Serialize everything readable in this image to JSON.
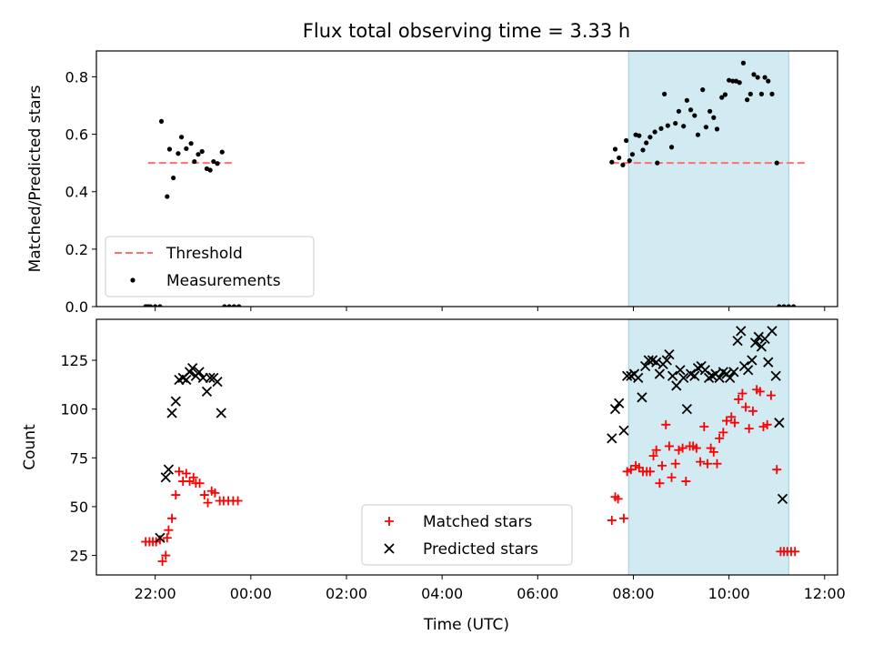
{
  "figure": {
    "title": "Flux total observing time = 3.33 h",
    "xlabel": "Time (UTC)",
    "x_tick_labels": [
      "22:00",
      "00:00",
      "02:00",
      "04:00",
      "06:00",
      "08:00",
      "10:00",
      "12:00"
    ]
  },
  "chart_data": [
    {
      "type": "scatter",
      "panel": "top",
      "title": "Flux total observing time = 3.33 h",
      "xlabel": "",
      "ylabel": "Matched/Predicted stars",
      "x_units": "hours since 00:00 UTC",
      "xlim": [
        -3.23,
        12.27
      ],
      "ylim": [
        0,
        0.89
      ],
      "y_ticks": [
        0.0,
        0.2,
        0.4,
        0.6,
        0.8
      ],
      "y_tick_labels": [
        "0.0",
        "0.2",
        "0.4",
        "0.6",
        "0.8"
      ],
      "legend": {
        "position": "lower-left",
        "entries": [
          "Threshold",
          "Measurements"
        ]
      },
      "grid": false,
      "shaded_span": {
        "x": [
          7.9,
          11.25
        ],
        "color": "#add8e6"
      },
      "series": [
        {
          "name": "Threshold",
          "style": "dashed-line",
          "color": "#ff7070",
          "segments": [
            [
              [
                -2.15,
                0.5
              ],
              [
                -0.35,
                0.5
              ]
            ],
            [
              [
                7.55,
                0.5
              ],
              [
                11.6,
                0.5
              ]
            ]
          ]
        },
        {
          "name": "Measurements",
          "style": "dot",
          "color": "#000000",
          "points": [
            [
              -2.2,
              0
            ],
            [
              -2.1,
              0
            ],
            [
              -2.0,
              0
            ],
            [
              -1.9,
              0
            ],
            [
              -2.15,
              0
            ],
            [
              -1.87,
              0.645
            ],
            [
              -1.75,
              0.383
            ],
            [
              -1.7,
              0.548
            ],
            [
              -1.62,
              0.448
            ],
            [
              -1.52,
              0.533
            ],
            [
              -1.45,
              0.59
            ],
            [
              -1.35,
              0.55
            ],
            [
              -1.25,
              0.568
            ],
            [
              -1.18,
              0.505
            ],
            [
              -1.1,
              0.53
            ],
            [
              -1.02,
              0.54
            ],
            [
              -0.92,
              0.48
            ],
            [
              -0.85,
              0.475
            ],
            [
              -0.78,
              0.505
            ],
            [
              -0.7,
              0.498
            ],
            [
              -0.6,
              0.538
            ],
            [
              -0.55,
              0
            ],
            [
              -0.45,
              0
            ],
            [
              -0.35,
              0
            ],
            [
              -0.25,
              0
            ],
            [
              7.55,
              0.503
            ],
            [
              7.62,
              0.548
            ],
            [
              7.7,
              0.518
            ],
            [
              7.78,
              0.493
            ],
            [
              7.85,
              0.578
            ],
            [
              7.92,
              0.508
            ],
            [
              7.98,
              0.53
            ],
            [
              8.05,
              0.598
            ],
            [
              8.12,
              0.595
            ],
            [
              8.2,
              0.545
            ],
            [
              8.27,
              0.57
            ],
            [
              8.35,
              0.59
            ],
            [
              8.45,
              0.608
            ],
            [
              8.5,
              0.5
            ],
            [
              8.58,
              0.62
            ],
            [
              8.65,
              0.74
            ],
            [
              8.72,
              0.63
            ],
            [
              8.8,
              0.555
            ],
            [
              8.88,
              0.638
            ],
            [
              8.95,
              0.68
            ],
            [
              9.05,
              0.628
            ],
            [
              9.12,
              0.718
            ],
            [
              9.2,
              0.685
            ],
            [
              9.28,
              0.665
            ],
            [
              9.35,
              0.598
            ],
            [
              9.45,
              0.755
            ],
            [
              9.52,
              0.625
            ],
            [
              9.6,
              0.68
            ],
            [
              9.68,
              0.658
            ],
            [
              9.75,
              0.618
            ],
            [
              9.85,
              0.728
            ],
            [
              9.92,
              0.738
            ],
            [
              10.0,
              0.788
            ],
            [
              10.08,
              0.785
            ],
            [
              10.15,
              0.785
            ],
            [
              10.22,
              0.78
            ],
            [
              10.3,
              0.848
            ],
            [
              10.38,
              0.72
            ],
            [
              10.45,
              0.74
            ],
            [
              10.52,
              0.808
            ],
            [
              10.6,
              0.798
            ],
            [
              10.68,
              0.74
            ],
            [
              10.75,
              0.798
            ],
            [
              10.82,
              0.785
            ],
            [
              10.9,
              0.74
            ],
            [
              11.0,
              0.5
            ],
            [
              11.05,
              0
            ],
            [
              11.15,
              0
            ],
            [
              11.25,
              0
            ],
            [
              11.35,
              0
            ]
          ]
        }
      ]
    },
    {
      "type": "scatter",
      "panel": "bottom",
      "title": "",
      "xlabel": "Time (UTC)",
      "ylabel": "Count",
      "x_units": "hours since 00:00 UTC",
      "xlim": [
        -3.23,
        12.27
      ],
      "ylim": [
        15,
        146
      ],
      "y_ticks": [
        25,
        50,
        75,
        100,
        125
      ],
      "y_tick_labels": [
        "25",
        "50",
        "75",
        "100",
        "125"
      ],
      "legend": {
        "position": "lower-center",
        "entries": [
          "Matched stars",
          "Predicted stars"
        ]
      },
      "grid": false,
      "shaded_span": {
        "x": [
          7.9,
          11.25
        ],
        "color": "#add8e6"
      },
      "series": [
        {
          "name": "Matched stars",
          "marker": "plus",
          "color": "#ff0000",
          "points": [
            [
              -2.2,
              32
            ],
            [
              -2.12,
              32
            ],
            [
              -2.05,
              32
            ],
            [
              -1.98,
              32
            ],
            [
              -1.9,
              33
            ],
            [
              -1.85,
              22
            ],
            [
              -1.78,
              25
            ],
            [
              -1.75,
              34
            ],
            [
              -1.72,
              38
            ],
            [
              -1.65,
              44
            ],
            [
              -1.57,
              56
            ],
            [
              -1.5,
              68
            ],
            [
              -1.42,
              63
            ],
            [
              -1.35,
              67
            ],
            [
              -1.28,
              63
            ],
            [
              -1.2,
              65
            ],
            [
              -1.15,
              62
            ],
            [
              -1.07,
              62
            ],
            [
              -0.97,
              56
            ],
            [
              -0.9,
              52
            ],
            [
              -0.82,
              58
            ],
            [
              -0.75,
              57
            ],
            [
              -0.65,
              53
            ],
            [
              -0.57,
              53
            ],
            [
              -0.47,
              53
            ],
            [
              -0.37,
              53
            ],
            [
              -0.27,
              53
            ],
            [
              7.55,
              43
            ],
            [
              7.62,
              55
            ],
            [
              7.68,
              54
            ],
            [
              7.8,
              44
            ],
            [
              7.87,
              68
            ],
            [
              7.95,
              69
            ],
            [
              8.05,
              71
            ],
            [
              8.12,
              70
            ],
            [
              8.2,
              68
            ],
            [
              8.28,
              68
            ],
            [
              8.35,
              68
            ],
            [
              8.42,
              76
            ],
            [
              8.48,
              79
            ],
            [
              8.55,
              62
            ],
            [
              8.6,
              71
            ],
            [
              8.68,
              92
            ],
            [
              8.75,
              81
            ],
            [
              8.8,
              65
            ],
            [
              8.88,
              72
            ],
            [
              8.95,
              79
            ],
            [
              9.03,
              80
            ],
            [
              9.1,
              63
            ],
            [
              9.18,
              81
            ],
            [
              9.25,
              81
            ],
            [
              9.32,
              80
            ],
            [
              9.4,
              73
            ],
            [
              9.48,
              91
            ],
            [
              9.55,
              72
            ],
            [
              9.62,
              80
            ],
            [
              9.68,
              78
            ],
            [
              9.75,
              72
            ],
            [
              9.8,
              85
            ],
            [
              9.88,
              88
            ],
            [
              9.95,
              94
            ],
            [
              10.05,
              96
            ],
            [
              10.12,
              93
            ],
            [
              10.2,
              105
            ],
            [
              10.28,
              108
            ],
            [
              10.35,
              101
            ],
            [
              10.42,
              90
            ],
            [
              10.5,
              99
            ],
            [
              10.58,
              110
            ],
            [
              10.65,
              109
            ],
            [
              10.72,
              91
            ],
            [
              10.8,
              92
            ],
            [
              10.88,
              107
            ],
            [
              11.0,
              69
            ],
            [
              11.08,
              27
            ],
            [
              11.15,
              27
            ],
            [
              11.22,
              27
            ],
            [
              11.3,
              27
            ],
            [
              11.38,
              27
            ]
          ]
        },
        {
          "name": "Predicted stars",
          "marker": "x",
          "color": "#000000",
          "points": [
            [
              -1.9,
              34
            ],
            [
              -1.78,
              65
            ],
            [
              -1.72,
              69
            ],
            [
              -1.65,
              98
            ],
            [
              -1.57,
              104
            ],
            [
              -1.5,
              115
            ],
            [
              -1.42,
              116
            ],
            [
              -1.35,
              115
            ],
            [
              -1.28,
              119
            ],
            [
              -1.22,
              121
            ],
            [
              -1.15,
              117
            ],
            [
              -1.08,
              119
            ],
            [
              -1.0,
              116
            ],
            [
              -0.92,
              109
            ],
            [
              -0.85,
              116
            ],
            [
              -0.78,
              116
            ],
            [
              -0.7,
              114
            ],
            [
              -0.62,
              98
            ],
            [
              7.55,
              85
            ],
            [
              7.62,
              100
            ],
            [
              7.7,
              103
            ],
            [
              7.8,
              89
            ],
            [
              7.87,
              117
            ],
            [
              7.95,
              117
            ],
            [
              8.02,
              118
            ],
            [
              8.1,
              116
            ],
            [
              8.18,
              106
            ],
            [
              8.25,
              122
            ],
            [
              8.32,
              125
            ],
            [
              8.4,
              125
            ],
            [
              8.48,
              124
            ],
            [
              8.55,
              118
            ],
            [
              8.62,
              123
            ],
            [
              8.7,
              125
            ],
            [
              8.75,
              128
            ],
            [
              8.82,
              117
            ],
            [
              8.9,
              112
            ],
            [
              8.98,
              120
            ],
            [
              9.05,
              116
            ],
            [
              9.12,
              100
            ],
            [
              9.2,
              118
            ],
            [
              9.28,
              117
            ],
            [
              9.35,
              121
            ],
            [
              9.42,
              122
            ],
            [
              9.5,
              120
            ],
            [
              9.58,
              116
            ],
            [
              9.65,
              117
            ],
            [
              9.72,
              118
            ],
            [
              9.8,
              116
            ],
            [
              9.88,
              119
            ],
            [
              9.95,
              118
            ],
            [
              10.02,
              116
            ],
            [
              10.1,
              119
            ],
            [
              10.18,
              135
            ],
            [
              10.25,
              140
            ],
            [
              10.32,
              122
            ],
            [
              10.4,
              120
            ],
            [
              10.48,
              125
            ],
            [
              10.55,
              134
            ],
            [
              10.62,
              137
            ],
            [
              10.68,
              132
            ],
            [
              10.75,
              136
            ],
            [
              10.82,
              124
            ],
            [
              10.9,
              140
            ],
            [
              10.98,
              117
            ],
            [
              11.05,
              93
            ],
            [
              11.12,
              54
            ]
          ]
        }
      ]
    }
  ]
}
